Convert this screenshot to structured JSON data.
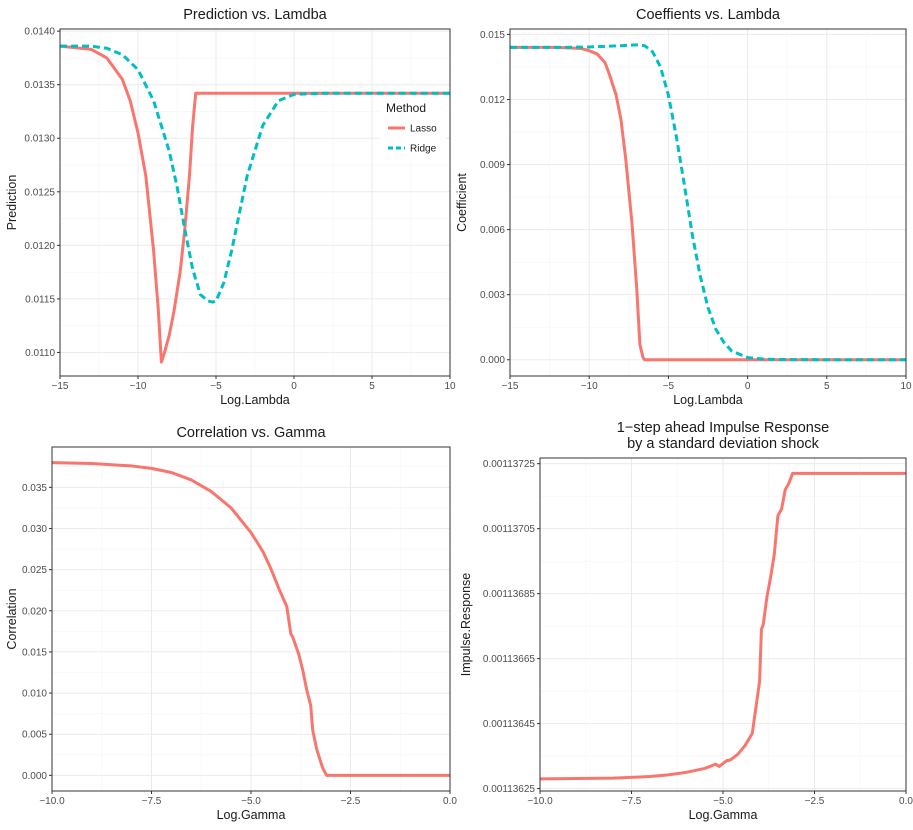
{
  "chart_data": [
    {
      "id": "p1",
      "type": "line",
      "title": [
        "Prediction vs. Lamdba"
      ],
      "xlabel": "Log.Lambda",
      "ylabel": "Prediction",
      "xlim": [
        -15,
        10
      ],
      "ylim": [
        0.01078,
        0.01402
      ],
      "xticks": [
        -15,
        -10,
        -5,
        0,
        5,
        10
      ],
      "xtick_labels": [
        "−15",
        "−10",
        "−5",
        "0",
        "5",
        "10"
      ],
      "yticks": [
        0.011,
        0.0115,
        0.012,
        0.0125,
        0.013,
        0.0135,
        0.014
      ],
      "ytick_labels": [
        "0.0110",
        "0.0115",
        "0.0120",
        "0.0125",
        "0.0130",
        "0.0135",
        "0.0140"
      ],
      "grid": true,
      "legend": {
        "title": "Method",
        "position": "top-right-inside",
        "entries": [
          "Lasso",
          "Ridge"
        ]
      },
      "series": [
        {
          "name": "Lasso",
          "color": "#F8766D",
          "dash": "solid",
          "x": [
            -15,
            -13,
            -12,
            -11,
            -10.5,
            -10,
            -9.5,
            -9,
            -8.7,
            -8.5,
            -8.3,
            -8,
            -7.7,
            -7.3,
            -7,
            -6.7,
            -6.5,
            -6.3,
            -5,
            0,
            5,
            10
          ],
          "y": [
            0.01386,
            0.01383,
            0.01375,
            0.01355,
            0.01335,
            0.01305,
            0.01265,
            0.01195,
            0.0114,
            0.01091,
            0.011,
            0.01116,
            0.01138,
            0.01175,
            0.01215,
            0.01265,
            0.01311,
            0.01342,
            0.01342,
            0.01342,
            0.01342,
            0.01342
          ]
        },
        {
          "name": "Ridge",
          "color": "#00BFC4",
          "dash": "dashed",
          "x": [
            -15,
            -13,
            -12,
            -11,
            -10,
            -9,
            -8,
            -7.5,
            -7,
            -6.5,
            -6,
            -5.5,
            -5.2,
            -5,
            -4.5,
            -4,
            -3,
            -2,
            -1,
            0,
            2,
            5,
            10
          ],
          "y": [
            0.01386,
            0.01386,
            0.01384,
            0.01378,
            0.01364,
            0.01335,
            0.01288,
            0.01255,
            0.01215,
            0.01178,
            0.01154,
            0.01148,
            0.01147,
            0.01148,
            0.01165,
            0.01195,
            0.01265,
            0.01312,
            0.01335,
            0.01341,
            0.01342,
            0.01342,
            0.01342
          ]
        }
      ]
    },
    {
      "id": "p2",
      "type": "line",
      "title": [
        "Coeffients vs. Lambda"
      ],
      "xlabel": "Log.Lambda",
      "ylabel": "Coefficient",
      "xlim": [
        -15,
        10
      ],
      "ylim": [
        -0.00075,
        0.01525
      ],
      "xticks": [
        -15,
        -10,
        -5,
        0,
        5,
        10
      ],
      "xtick_labels": [
        "−15",
        "−10",
        "−5",
        "0",
        "5",
        "10"
      ],
      "yticks": [
        0,
        0.003,
        0.006,
        0.009,
        0.012,
        0.015
      ],
      "ytick_labels": [
        "0.000",
        "0.003",
        "0.006",
        "0.009",
        "0.012",
        "0.015"
      ],
      "grid": true,
      "series": [
        {
          "name": "Lasso",
          "color": "#F8766D",
          "dash": "solid",
          "x": [
            -15,
            -12,
            -10.5,
            -10,
            -9.5,
            -9,
            -8.7,
            -8.3,
            -8,
            -7.7,
            -7.3,
            -7,
            -6.8,
            -6.6,
            -6.5,
            0,
            10
          ],
          "y": [
            0.0144,
            0.0144,
            0.01435,
            0.01425,
            0.0141,
            0.0137,
            0.0131,
            0.0122,
            0.0111,
            0.0093,
            0.0063,
            0.0033,
            0.0007,
            0.0001,
            0,
            0,
            0
          ]
        },
        {
          "name": "Ridge",
          "color": "#00BFC4",
          "dash": "dashed",
          "x": [
            -15,
            -12,
            -10,
            -8,
            -7,
            -6.5,
            -6,
            -5.5,
            -5,
            -4.5,
            -4,
            -3.5,
            -3,
            -2.5,
            -2,
            -1.5,
            -1,
            0,
            1,
            2,
            5,
            10
          ],
          "y": [
            0.0144,
            0.0144,
            0.01442,
            0.01448,
            0.01452,
            0.01448,
            0.0142,
            0.0135,
            0.0122,
            0.0103,
            0.0081,
            0.0058,
            0.0039,
            0.0024,
            0.0014,
            0.0008,
            0.0004,
            0.0001,
            3e-05,
            1e-05,
            0,
            0
          ]
        }
      ]
    },
    {
      "id": "p3",
      "type": "line",
      "title": [
        "Correlation vs. Gamma"
      ],
      "xlabel": "Log.Gamma",
      "ylabel": "Correlation",
      "xlim": [
        -10,
        0
      ],
      "ylim": [
        -0.0019,
        0.0399
      ],
      "xticks": [
        -10,
        -7.5,
        -5,
        -2.5,
        0
      ],
      "xtick_labels": [
        "−10.0",
        "−7.5",
        "−5.0",
        "−2.5",
        "0.0"
      ],
      "yticks": [
        0,
        0.005,
        0.01,
        0.015,
        0.02,
        0.025,
        0.03,
        0.035
      ],
      "ytick_labels": [
        "0.000",
        "0.005",
        "0.010",
        "0.015",
        "0.020",
        "0.025",
        "0.030",
        "0.035"
      ],
      "grid": true,
      "series": [
        {
          "name": "Correlation",
          "color": "#F8766D",
          "dash": "solid",
          "x": [
            -10,
            -9,
            -8,
            -7.5,
            -7,
            -6.5,
            -6,
            -5.5,
            -5,
            -4.7,
            -4.5,
            -4.3,
            -4.1,
            -4,
            -3.95,
            -3.8,
            -3.7,
            -3.6,
            -3.5,
            -3.45,
            -3.35,
            -3.2,
            -3.1,
            -2.5,
            -1,
            0
          ],
          "y": [
            0.038,
            0.0379,
            0.0376,
            0.0373,
            0.0368,
            0.0359,
            0.0345,
            0.0325,
            0.0295,
            0.0272,
            0.0251,
            0.0227,
            0.0205,
            0.0172,
            0.0168,
            0.0147,
            0.0128,
            0.0104,
            0.0085,
            0.0055,
            0.0032,
            0.0009,
            0,
            0,
            0,
            0
          ]
        }
      ]
    },
    {
      "id": "p4",
      "type": "line",
      "title": [
        "1−step ahead Impulse Response",
        "by a standard deviation shock"
      ],
      "xlabel": "Log.Gamma",
      "ylabel": "Impulse.Response",
      "xlim": [
        -10,
        0
      ],
      "ylim": [
        0.0011362425,
        0.0011372675
      ],
      "xticks": [
        -10,
        -7.5,
        -5,
        -2.5,
        0
      ],
      "xtick_labels": [
        "−10.0",
        "−7.5",
        "−5.0",
        "−2.5",
        "0.0"
      ],
      "yticks": [
        0.00113625,
        0.00113645,
        0.00113665,
        0.00113685,
        0.00113705,
        0.00113725
      ],
      "ytick_labels": [
        "0.00113625",
        "0.00113645",
        "0.00113665",
        "0.00113685",
        "0.00113705",
        "0.00113725"
      ],
      "grid": true,
      "series": [
        {
          "name": "Impulse.Response",
          "color": "#F8766D",
          "dash": "solid",
          "x": [
            -10,
            -8,
            -7,
            -6.5,
            -6,
            -5.5,
            -5.2,
            -5.1,
            -4.9,
            -4.8,
            -4.6,
            -4.4,
            -4.2,
            -4.0,
            -3.95,
            -3.9,
            -3.8,
            -3.7,
            -3.6,
            -3.5,
            -3.4,
            -3.3,
            -3.2,
            -3.1,
            -2.5,
            -1,
            0
          ],
          "y": [
            0.00113628,
            0.001136282,
            0.001136287,
            0.001136292,
            0.0011363,
            0.001136312,
            0.001136325,
            0.001136318,
            0.001136336,
            0.001136338,
            0.001136355,
            0.001136382,
            0.00113642,
            0.00113658,
            0.00113674,
            0.001136755,
            0.00113684,
            0.0011369,
            0.00113697,
            0.00113709,
            0.00113711,
            0.00113717,
            0.00113719,
            0.00113722,
            0.00113722,
            0.00113722,
            0.00113722
          ]
        }
      ]
    }
  ]
}
